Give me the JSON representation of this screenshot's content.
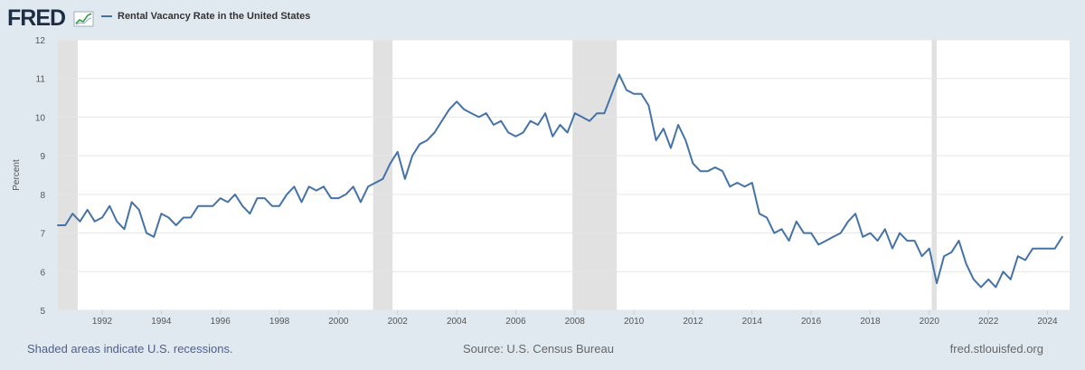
{
  "logo": {
    "text": "FRED",
    "icon": "chart-trend-icon"
  },
  "legend": {
    "series_label": "Rental Vacancy Rate in the United States"
  },
  "footer": {
    "recessions_note": "Shaded areas indicate U.S. recessions.",
    "source": "Source: U.S. Census Bureau",
    "site": "fred.stlouisfed.org"
  },
  "colors": {
    "background": "#e1e9f0",
    "plot_background": "#ffffff",
    "series_line": "#4572a7",
    "recession_shade": "#e1e1e1",
    "grid": "#e6e6e6"
  },
  "chart_data": {
    "type": "line",
    "title": "",
    "xlabel": "",
    "ylabel": "Percent",
    "ylim": [
      5,
      12
    ],
    "xlim": [
      1990.5,
      2024.75
    ],
    "y_ticks": [
      5,
      6,
      7,
      8,
      9,
      10,
      11,
      12
    ],
    "x_ticks": [
      "1992",
      "1994",
      "1996",
      "1998",
      "2000",
      "2002",
      "2004",
      "2006",
      "2008",
      "2010",
      "2012",
      "2014",
      "2016",
      "2018",
      "2020",
      "2022",
      "2024"
    ],
    "grid": "horizontal",
    "legend_position": "top-left",
    "recessions": [
      {
        "start": 1990.5,
        "end": 1991.17
      },
      {
        "start": 2001.17,
        "end": 2001.83
      },
      {
        "start": 2007.92,
        "end": 2009.42
      },
      {
        "start": 2020.08,
        "end": 2020.25
      }
    ],
    "series": [
      {
        "name": "Rental Vacancy Rate in the United States",
        "unit": "Percent",
        "x": [
          1990.5,
          1990.75,
          1991.0,
          1991.25,
          1991.5,
          1991.75,
          1992.0,
          1992.25,
          1992.5,
          1992.75,
          1993.0,
          1993.25,
          1993.5,
          1993.75,
          1994.0,
          1994.25,
          1994.5,
          1994.75,
          1995.0,
          1995.25,
          1995.5,
          1995.75,
          1996.0,
          1996.25,
          1996.5,
          1996.75,
          1997.0,
          1997.25,
          1997.5,
          1997.75,
          1998.0,
          1998.25,
          1998.5,
          1998.75,
          1999.0,
          1999.25,
          1999.5,
          1999.75,
          2000.0,
          2000.25,
          2000.5,
          2000.75,
          2001.0,
          2001.25,
          2001.5,
          2001.75,
          2002.0,
          2002.25,
          2002.5,
          2002.75,
          2003.0,
          2003.25,
          2003.5,
          2003.75,
          2004.0,
          2004.25,
          2004.5,
          2004.75,
          2005.0,
          2005.25,
          2005.5,
          2005.75,
          2006.0,
          2006.25,
          2006.5,
          2006.75,
          2007.0,
          2007.25,
          2007.5,
          2007.75,
          2008.0,
          2008.25,
          2008.5,
          2008.75,
          2009.0,
          2009.25,
          2009.5,
          2009.75,
          2010.0,
          2010.25,
          2010.5,
          2010.75,
          2011.0,
          2011.25,
          2011.5,
          2011.75,
          2012.0,
          2012.25,
          2012.5,
          2012.75,
          2013.0,
          2013.25,
          2013.5,
          2013.75,
          2014.0,
          2014.25,
          2014.5,
          2014.75,
          2015.0,
          2015.25,
          2015.5,
          2015.75,
          2016.0,
          2016.25,
          2016.5,
          2016.75,
          2017.0,
          2017.25,
          2017.5,
          2017.75,
          2018.0,
          2018.25,
          2018.5,
          2018.75,
          2019.0,
          2019.25,
          2019.5,
          2019.75,
          2020.0,
          2020.25,
          2020.5,
          2020.75,
          2021.0,
          2021.25,
          2021.5,
          2021.75,
          2022.0,
          2022.25,
          2022.5,
          2022.75,
          2023.0,
          2023.25,
          2023.5,
          2023.75,
          2024.0,
          2024.25,
          2024.5
        ],
        "values": [
          7.2,
          7.2,
          7.5,
          7.3,
          7.6,
          7.3,
          7.4,
          7.7,
          7.3,
          7.1,
          7.8,
          7.6,
          7.0,
          6.9,
          7.5,
          7.4,
          7.2,
          7.4,
          7.4,
          7.7,
          7.7,
          7.7,
          7.9,
          7.8,
          8.0,
          7.7,
          7.5,
          7.9,
          7.9,
          7.7,
          7.7,
          8.0,
          8.2,
          7.8,
          8.2,
          8.1,
          8.2,
          7.9,
          7.9,
          8.0,
          8.2,
          7.8,
          8.2,
          8.3,
          8.4,
          8.8,
          9.1,
          8.4,
          9.0,
          9.3,
          9.4,
          9.6,
          9.9,
          10.2,
          10.4,
          10.2,
          10.1,
          10.0,
          10.1,
          9.8,
          9.9,
          9.6,
          9.5,
          9.6,
          9.9,
          9.8,
          10.1,
          9.5,
          9.8,
          9.6,
          10.1,
          10.0,
          9.9,
          10.1,
          10.1,
          10.6,
          11.1,
          10.7,
          10.6,
          10.6,
          10.3,
          9.4,
          9.7,
          9.2,
          9.8,
          9.4,
          8.8,
          8.6,
          8.6,
          8.7,
          8.6,
          8.2,
          8.3,
          8.2,
          8.3,
          7.5,
          7.4,
          7.0,
          7.1,
          6.8,
          7.3,
          7.0,
          7.0,
          6.7,
          6.8,
          6.9,
          7.0,
          7.3,
          7.5,
          6.9,
          7.0,
          6.8,
          7.1,
          6.6,
          7.0,
          6.8,
          6.8,
          6.4,
          6.6,
          5.7,
          6.4,
          6.5,
          6.8,
          6.2,
          5.8,
          5.6,
          5.8,
          5.6,
          6.0,
          5.8,
          6.4,
          6.3,
          6.6,
          6.6,
          6.6,
          6.6,
          6.9
        ]
      }
    ]
  }
}
